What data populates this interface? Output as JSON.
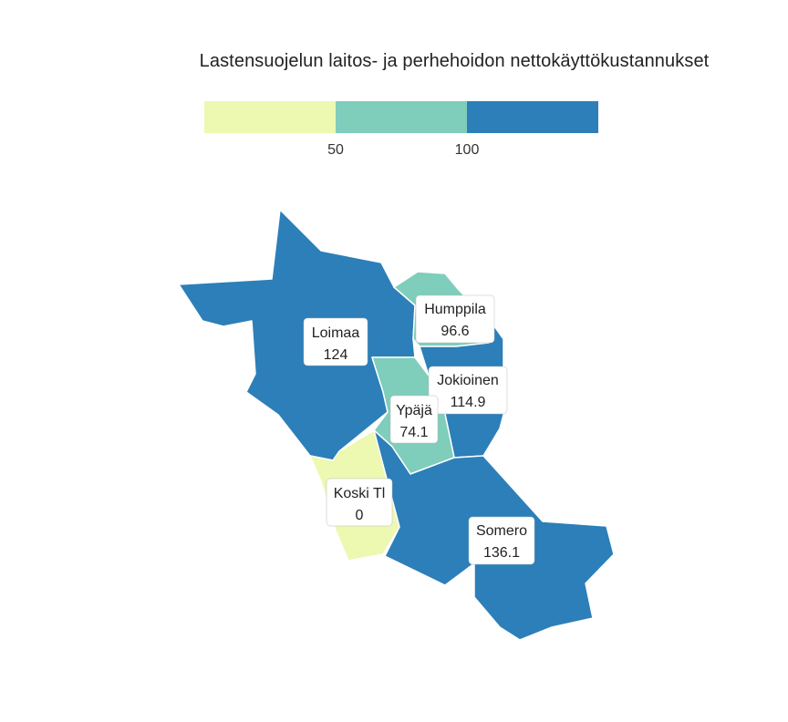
{
  "title": "Lastensuojelun laitos- ja perhehoidon nettokäyttökustannukset",
  "legend": {
    "colors": [
      "#edf8b1",
      "#7fcdbb",
      "#2c7fb8"
    ],
    "ticks": [
      "50",
      "100"
    ]
  },
  "regions": [
    {
      "name": "Loimaa",
      "value": "124",
      "color": "#2c7fb8"
    },
    {
      "name": "Humppila",
      "value": "96.6",
      "color": "#7fcdbb"
    },
    {
      "name": "Jokioinen",
      "value": "114.9",
      "color": "#2c7fb8"
    },
    {
      "name": "Ypäjä",
      "value": "74.1",
      "color": "#7fcdbb"
    },
    {
      "name": "Koski Tl",
      "value": "0",
      "color": "#edf8b1"
    },
    {
      "name": "Somero",
      "value": "136.1",
      "color": "#2c7fb8"
    }
  ]
}
